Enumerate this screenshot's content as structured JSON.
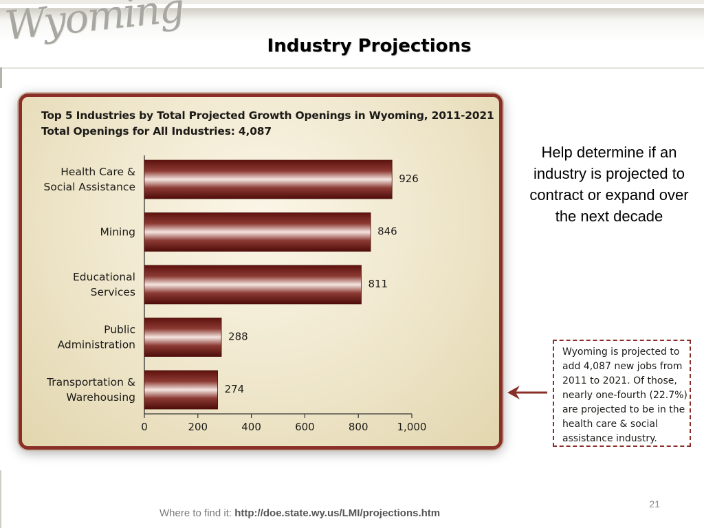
{
  "header": {
    "logo_text": "Wyoming",
    "title": "Industry Projections"
  },
  "chart_data": {
    "type": "bar",
    "orientation": "horizontal",
    "title_line1": "Top 5 Industries by Total Projected Growth Openings in Wyoming, 2011-2021",
    "title_line2": "Total Openings for All Industries: 4,087",
    "categories": [
      [
        "Health Care &",
        "Social Assistance"
      ],
      [
        "Mining"
      ],
      [
        "Educational",
        "Services"
      ],
      [
        "Public",
        "Administration"
      ],
      [
        "Transportation &",
        "Warehousing"
      ]
    ],
    "values": [
      926,
      846,
      811,
      288,
      274
    ],
    "value_labels": [
      "926",
      "846",
      "811",
      "288",
      "274"
    ],
    "xlim": [
      0,
      1000
    ],
    "x_ticks": [
      0,
      200,
      400,
      600,
      800,
      1000
    ],
    "x_tick_labels": [
      "0",
      "200",
      "400",
      "600",
      "800",
      "1,000"
    ],
    "grid": false,
    "bar_color": "#7a1f1a"
  },
  "side_note": "Help determine if an industry is projected to contract or expand over the next decade",
  "callout": {
    "text": "Wyoming is projected to add 4,087 new jobs from 2011 to 2021. Of those, nearly one-fourth (22.7%) are projected to be in the health care & social assistance industry."
  },
  "footer": {
    "prefix": "Where to find it: ",
    "url": "http://doe.state.wy.us/LMI/projections.htm"
  },
  "page_number": "21",
  "colors": {
    "accent": "#8a2f28",
    "panel": "#ede4c7"
  }
}
